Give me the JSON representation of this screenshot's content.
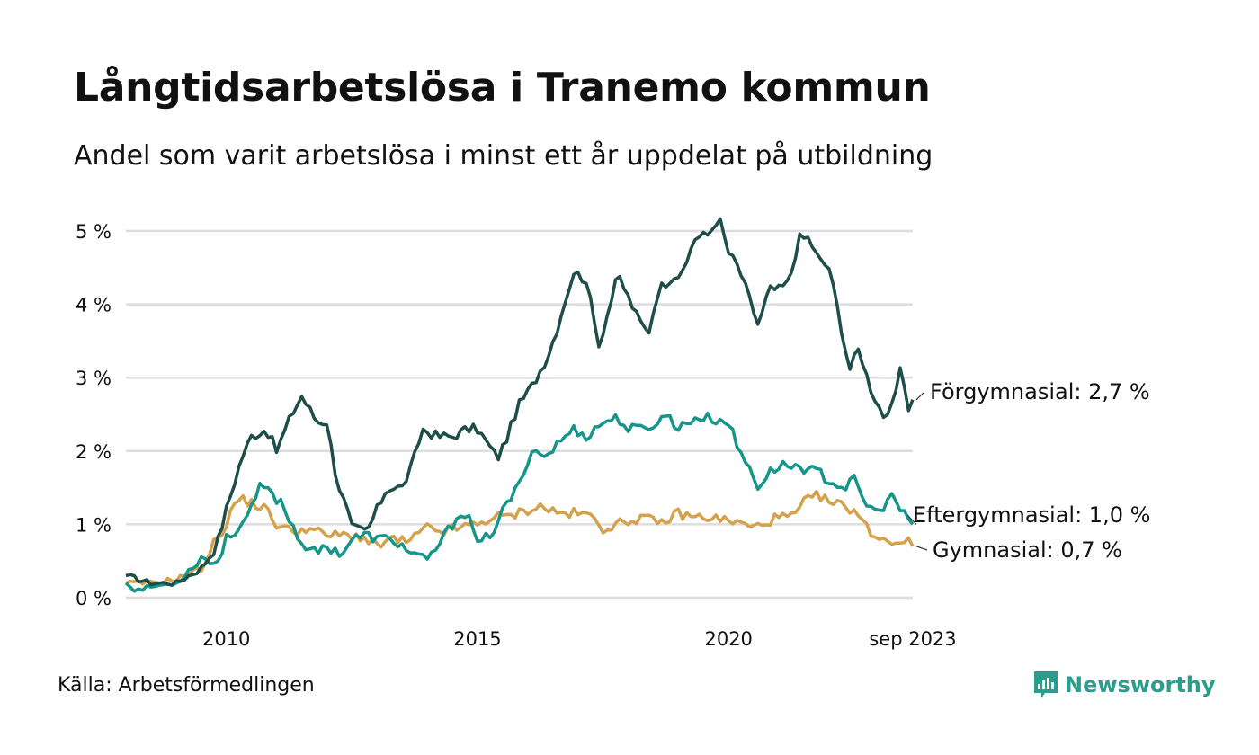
{
  "title": "Långtidsarbetslösa i Tranemo kommun",
  "subtitle": "Andel som varit arbetslösa i minst ett år uppdelat på utbildning",
  "source": "Källa: Arbetsförmedlingen",
  "brand": "Newsworthy",
  "colors": {
    "forgymnasial": "#1f4e4a",
    "eftergymnasial": "#16968a",
    "gymnasial": "#d4a24c",
    "brand": "#2a9d8f",
    "grid": "#dddddd"
  },
  "chart_data": {
    "type": "line",
    "title": "Långtidsarbetslösa i Tranemo kommun",
    "xlabel": "",
    "ylabel": "",
    "x_start": 2008.0,
    "x_step": 0.08333,
    "xlim": [
      2008.0,
      2023.667
    ],
    "ylim": [
      0,
      5
    ],
    "y_ticks": [
      0,
      1,
      2,
      3,
      4,
      5
    ],
    "y_tick_labels": [
      "0 %",
      "1 %",
      "2 %",
      "3 %",
      "4 %",
      "5 %"
    ],
    "x_ticks": [
      2010,
      2015,
      2020,
      2023.667
    ],
    "x_tick_labels": [
      "2010",
      "2015",
      "2020",
      "sep 2023"
    ],
    "series": [
      {
        "name": "Förgymnasial",
        "color": "#1f4e4a",
        "end_label": "Förgymnasial: 2,7 %",
        "anchors": [
          [
            2008.0,
            0.3
          ],
          [
            2008.5,
            0.2
          ],
          [
            2009.0,
            0.2
          ],
          [
            2009.5,
            0.4
          ],
          [
            2009.8,
            0.7
          ],
          [
            2010.0,
            1.2
          ],
          [
            2010.3,
            1.9
          ],
          [
            2010.5,
            2.2
          ],
          [
            2010.8,
            2.3
          ],
          [
            2011.0,
            2.0
          ],
          [
            2011.3,
            2.5
          ],
          [
            2011.5,
            2.75
          ],
          [
            2011.8,
            2.4
          ],
          [
            2012.0,
            2.4
          ],
          [
            2012.2,
            1.6
          ],
          [
            2012.4,
            1.2
          ],
          [
            2012.5,
            0.95
          ],
          [
            2012.8,
            0.9
          ],
          [
            2013.0,
            1.2
          ],
          [
            2013.2,
            1.5
          ],
          [
            2013.5,
            1.5
          ],
          [
            2013.7,
            1.8
          ],
          [
            2013.9,
            2.3
          ],
          [
            2014.2,
            2.2
          ],
          [
            2014.5,
            2.2
          ],
          [
            2014.8,
            2.3
          ],
          [
            2015.0,
            2.3
          ],
          [
            2015.2,
            2.1
          ],
          [
            2015.4,
            1.9
          ],
          [
            2015.6,
            2.2
          ],
          [
            2015.8,
            2.6
          ],
          [
            2016.1,
            2.9
          ],
          [
            2016.4,
            3.3
          ],
          [
            2016.6,
            3.7
          ],
          [
            2016.8,
            4.2
          ],
          [
            2017.0,
            4.5
          ],
          [
            2017.3,
            4.0
          ],
          [
            2017.4,
            3.4
          ],
          [
            2017.6,
            3.9
          ],
          [
            2017.8,
            4.4
          ],
          [
            2018.0,
            4.1
          ],
          [
            2018.2,
            3.8
          ],
          [
            2018.4,
            3.6
          ],
          [
            2018.6,
            4.2
          ],
          [
            2018.9,
            4.4
          ],
          [
            2019.1,
            4.4
          ],
          [
            2019.3,
            4.9
          ],
          [
            2019.6,
            4.95
          ],
          [
            2019.8,
            5.2
          ],
          [
            2020.0,
            4.7
          ],
          [
            2020.2,
            4.5
          ],
          [
            2020.4,
            4.1
          ],
          [
            2020.6,
            3.7
          ],
          [
            2020.8,
            4.2
          ],
          [
            2021.0,
            4.2
          ],
          [
            2021.2,
            4.3
          ],
          [
            2021.4,
            4.9
          ],
          [
            2021.6,
            4.9
          ],
          [
            2021.8,
            4.6
          ],
          [
            2022.0,
            4.5
          ],
          [
            2022.3,
            3.5
          ],
          [
            2022.4,
            3.1
          ],
          [
            2022.6,
            3.4
          ],
          [
            2022.8,
            2.9
          ],
          [
            2023.0,
            2.6
          ],
          [
            2023.15,
            2.4
          ],
          [
            2023.3,
            2.7
          ],
          [
            2023.4,
            3.1
          ],
          [
            2023.5,
            2.9
          ],
          [
            2023.58,
            2.6
          ],
          [
            2023.667,
            2.7
          ]
        ]
      },
      {
        "name": "Eftergymnasial",
        "color": "#16968a",
        "end_label": "Eftergymnasial: 1,0 %",
        "anchors": [
          [
            2008.0,
            0.2
          ],
          [
            2008.2,
            0.1
          ],
          [
            2008.5,
            0.15
          ],
          [
            2009.0,
            0.2
          ],
          [
            2009.3,
            0.4
          ],
          [
            2009.5,
            0.55
          ],
          [
            2009.8,
            0.45
          ],
          [
            2010.0,
            0.8
          ],
          [
            2010.3,
            1.0
          ],
          [
            2010.5,
            1.2
          ],
          [
            2010.7,
            1.55
          ],
          [
            2010.9,
            1.4
          ],
          [
            2011.1,
            1.3
          ],
          [
            2011.3,
            1.0
          ],
          [
            2011.5,
            0.75
          ],
          [
            2011.8,
            0.6
          ],
          [
            2012.0,
            0.7
          ],
          [
            2012.3,
            0.6
          ],
          [
            2012.5,
            0.8
          ],
          [
            2012.8,
            0.85
          ],
          [
            2013.0,
            0.8
          ],
          [
            2013.3,
            0.8
          ],
          [
            2013.6,
            0.65
          ],
          [
            2014.0,
            0.5
          ],
          [
            2014.2,
            0.7
          ],
          [
            2014.5,
            1.0
          ],
          [
            2014.7,
            1.2
          ],
          [
            2014.9,
            1.0
          ],
          [
            2015.0,
            0.7
          ],
          [
            2015.3,
            0.9
          ],
          [
            2015.6,
            1.3
          ],
          [
            2015.9,
            1.6
          ],
          [
            2016.1,
            2.1
          ],
          [
            2016.3,
            1.9
          ],
          [
            2016.6,
            2.1
          ],
          [
            2016.9,
            2.3
          ],
          [
            2017.2,
            2.2
          ],
          [
            2017.5,
            2.4
          ],
          [
            2017.8,
            2.45
          ],
          [
            2018.0,
            2.3
          ],
          [
            2018.3,
            2.3
          ],
          [
            2018.6,
            2.4
          ],
          [
            2018.8,
            2.5
          ],
          [
            2019.0,
            2.3
          ],
          [
            2019.3,
            2.45
          ],
          [
            2019.6,
            2.45
          ],
          [
            2019.9,
            2.4
          ],
          [
            2020.0,
            2.4
          ],
          [
            2020.2,
            2.0
          ],
          [
            2020.4,
            1.8
          ],
          [
            2020.6,
            1.5
          ],
          [
            2020.8,
            1.7
          ],
          [
            2021.0,
            1.8
          ],
          [
            2021.3,
            1.8
          ],
          [
            2021.6,
            1.75
          ],
          [
            2021.8,
            1.7
          ],
          [
            2022.0,
            1.6
          ],
          [
            2022.3,
            1.5
          ],
          [
            2022.5,
            1.6
          ],
          [
            2022.7,
            1.3
          ],
          [
            2022.9,
            1.2
          ],
          [
            2023.0,
            1.15
          ],
          [
            2023.2,
            1.4
          ],
          [
            2023.35,
            1.3
          ],
          [
            2023.45,
            1.15
          ],
          [
            2023.55,
            1.1
          ],
          [
            2023.667,
            1.0
          ]
        ]
      },
      {
        "name": "Gymnasial",
        "color": "#d4a24c",
        "end_label": "Gymnasial: 0,7 %",
        "anchors": [
          [
            2008.0,
            0.2
          ],
          [
            2008.5,
            0.2
          ],
          [
            2009.0,
            0.25
          ],
          [
            2009.5,
            0.4
          ],
          [
            2009.8,
            0.8
          ],
          [
            2010.0,
            1.0
          ],
          [
            2010.2,
            1.35
          ],
          [
            2010.5,
            1.3
          ],
          [
            2010.8,
            1.2
          ],
          [
            2011.0,
            1.0
          ],
          [
            2011.3,
            0.9
          ],
          [
            2011.6,
            0.95
          ],
          [
            2012.0,
            0.85
          ],
          [
            2012.3,
            0.85
          ],
          [
            2012.6,
            0.85
          ],
          [
            2013.0,
            0.7
          ],
          [
            2013.3,
            0.8
          ],
          [
            2013.6,
            0.75
          ],
          [
            2014.0,
            0.95
          ],
          [
            2014.3,
            0.9
          ],
          [
            2014.6,
            0.95
          ],
          [
            2015.0,
            1.0
          ],
          [
            2015.3,
            1.1
          ],
          [
            2015.6,
            1.1
          ],
          [
            2016.0,
            1.2
          ],
          [
            2016.3,
            1.25
          ],
          [
            2016.6,
            1.15
          ],
          [
            2017.0,
            1.15
          ],
          [
            2017.3,
            1.1
          ],
          [
            2017.5,
            0.95
          ],
          [
            2017.8,
            1.0
          ],
          [
            2018.0,
            1.05
          ],
          [
            2018.3,
            1.1
          ],
          [
            2018.6,
            1.0
          ],
          [
            2019.0,
            1.15
          ],
          [
            2019.3,
            1.1
          ],
          [
            2019.6,
            1.1
          ],
          [
            2020.0,
            1.05
          ],
          [
            2020.3,
            1.0
          ],
          [
            2020.5,
            0.95
          ],
          [
            2020.8,
            1.05
          ],
          [
            2021.0,
            1.1
          ],
          [
            2021.3,
            1.1
          ],
          [
            2021.5,
            1.3
          ],
          [
            2021.8,
            1.4
          ],
          [
            2022.0,
            1.3
          ],
          [
            2022.3,
            1.25
          ],
          [
            2022.5,
            1.2
          ],
          [
            2022.7,
            1.0
          ],
          [
            2022.9,
            0.85
          ],
          [
            2023.1,
            0.8
          ],
          [
            2023.3,
            0.75
          ],
          [
            2023.5,
            0.8
          ],
          [
            2023.667,
            0.7
          ]
        ]
      }
    ]
  }
}
